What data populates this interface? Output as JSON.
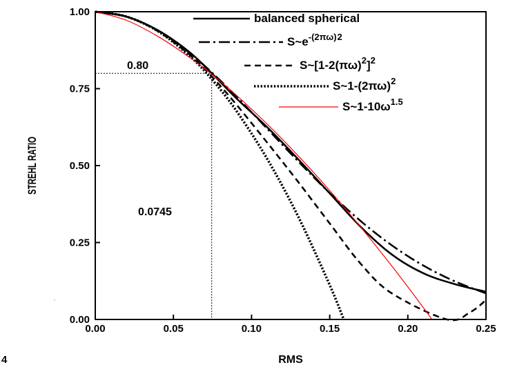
{
  "chart_data": {
    "type": "line",
    "title": "",
    "xlabel": "RMS",
    "ylabel": "STREHL RATIO",
    "xlim": [
      0,
      0.25
    ],
    "ylim": [
      0,
      1
    ],
    "x_ticks": [
      "0.00",
      "0.05",
      "0.10",
      "0.15",
      "0.20",
      "0.25"
    ],
    "y_ticks": [
      "0.00",
      "0.25",
      "0.50",
      "0.75",
      "1.00"
    ],
    "grid": false,
    "legend_position": "top-right",
    "series": [
      {
        "name": "balanced spherical",
        "style": "solid",
        "color": "#000000",
        "x": [
          0,
          0.02,
          0.04,
          0.06,
          0.0745,
          0.09,
          0.11,
          0.13,
          0.15,
          0.17,
          0.19,
          0.21,
          0.23,
          0.25
        ],
        "y": [
          1.0,
          0.984,
          0.94,
          0.87,
          0.8,
          0.72,
          0.625,
          0.52,
          0.41,
          0.3,
          0.21,
          0.15,
          0.115,
          0.09
        ]
      },
      {
        "name": "S~e^-(2πω)^2",
        "label_base": "S~e",
        "label_sup": "-(2πω)",
        "label_sup2": "2",
        "style": "dashdot",
        "color": "#000000",
        "x": [
          0,
          0.02,
          0.04,
          0.06,
          0.0745,
          0.09,
          0.11,
          0.13,
          0.15,
          0.17,
          0.19,
          0.21,
          0.23,
          0.25
        ],
        "y": [
          1.0,
          0.984,
          0.939,
          0.868,
          0.803,
          0.726,
          0.62,
          0.513,
          0.411,
          0.319,
          0.24,
          0.175,
          0.124,
          0.085
        ]
      },
      {
        "name": "S~[1-2(πω)^2]^2",
        "label_base": "S~[1-2(πω)",
        "label_sup": "2",
        "label_mid": "]",
        "label_sup2": "2",
        "style": "dashed",
        "color": "#000000",
        "x": [
          0,
          0.02,
          0.04,
          0.06,
          0.0745,
          0.09,
          0.11,
          0.13,
          0.15,
          0.17,
          0.19,
          0.2251,
          0.24,
          0.25
        ],
        "y": [
          1.0,
          0.984,
          0.937,
          0.862,
          0.79,
          0.7,
          0.575,
          0.446,
          0.312,
          0.18,
          0.084,
          0.0,
          0.024,
          0.063
        ]
      },
      {
        "name": "S~1-(2πω)^2",
        "label_base": "S~1-(2πω)",
        "label_sup": "2",
        "style": "dotted",
        "color": "#000000",
        "x": [
          0,
          0.02,
          0.04,
          0.06,
          0.0745,
          0.09,
          0.11,
          0.13,
          0.15,
          0.159
        ],
        "y": [
          1.0,
          0.984,
          0.937,
          0.858,
          0.781,
          0.68,
          0.522,
          0.333,
          0.112,
          0.0
        ]
      },
      {
        "name": "S~1-10ω^1.5",
        "label_base": "S~1-10ω",
        "label_sup": "1.5",
        "style": "thin",
        "color": "#ff0000",
        "x": [
          0,
          0.02,
          0.04,
          0.06,
          0.0745,
          0.09,
          0.11,
          0.13,
          0.15,
          0.17,
          0.19,
          0.21,
          0.2154
        ],
        "y": [
          1.0,
          0.972,
          0.92,
          0.853,
          0.797,
          0.73,
          0.635,
          0.531,
          0.419,
          0.299,
          0.172,
          0.038,
          0.0
        ]
      }
    ],
    "annotations": [
      {
        "text": "0.80",
        "x": 0.0745,
        "y": 0.8
      },
      {
        "text": "0.0745",
        "x": 0.0745,
        "y": 0.8
      }
    ],
    "footnote": "4"
  }
}
